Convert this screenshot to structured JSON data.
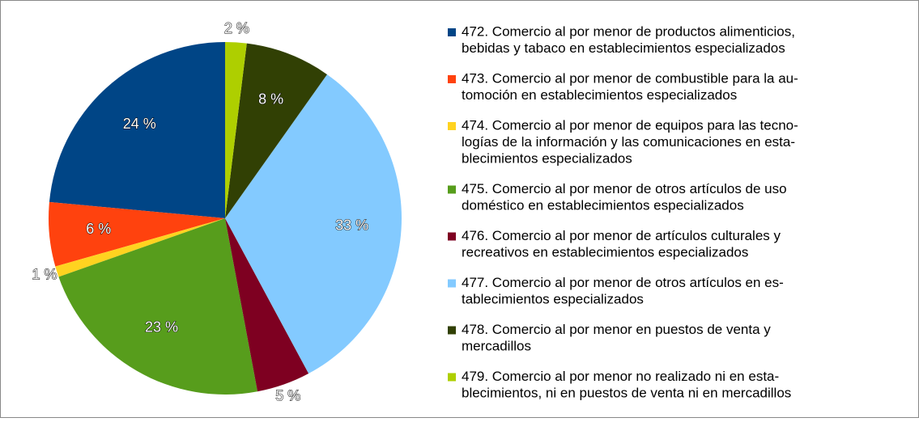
{
  "chart_data": {
    "type": "pie",
    "categories": [
      [
        "472. Comercio al por menor de productos alimenticios,",
        "bebidas y tabaco en establecimientos especializados"
      ],
      [
        "473. Comercio al por menor de combustible para la au-",
        "tomoción en establecimientos especializados"
      ],
      [
        "474. Comercio al por menor de equipos para las tecno-",
        "logías de la información y las comunicaciones en esta-",
        "blecimientos especializados"
      ],
      [
        "475. Comercio al por menor de otros artículos de uso",
        "doméstico en establecimientos especializados"
      ],
      [
        "476. Comercio al por menor de artículos culturales y",
        "recreativos en establecimientos especializados"
      ],
      [
        "477. Comercio al por menor de otros artículos en es-",
        "tablecimientos especializados"
      ],
      [
        "478. Comercio al por menor en puestos de venta y",
        "mercadillos"
      ],
      [
        "479. Comercio al por menor no realizado ni en esta-",
        "blecimientos, ni en puestos de venta ni en mercadillos"
      ]
    ],
    "values": [
      24,
      6,
      1,
      23,
      5,
      33,
      8,
      2
    ],
    "value_labels": [
      "24 %",
      "6 %",
      "1 %",
      "23 %",
      "5 %",
      "33 %",
      "8 %",
      "2 %"
    ],
    "colors": [
      "#004586",
      "#ff420e",
      "#ffd320",
      "#579d1c",
      "#7e0021",
      "#83caff",
      "#314004",
      "#aecf00"
    ]
  }
}
